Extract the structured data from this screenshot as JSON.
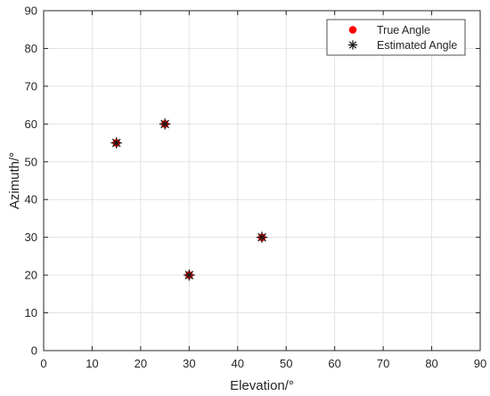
{
  "chart_data": {
    "type": "scatter",
    "xlabel": "Elevation/°",
    "ylabel": "Azimuth/°",
    "xlim": [
      0,
      90
    ],
    "ylim": [
      0,
      90
    ],
    "xticks": [
      0,
      10,
      20,
      30,
      40,
      50,
      60,
      70,
      80,
      90
    ],
    "yticks": [
      0,
      10,
      20,
      30,
      40,
      50,
      60,
      70,
      80,
      90
    ],
    "grid": true,
    "legend_position": "top-right",
    "series": [
      {
        "name": "True Angle",
        "marker": "filled-circle",
        "color": "#ff0000",
        "x": [
          15,
          25,
          30,
          45
        ],
        "y": [
          55,
          60,
          20,
          30
        ]
      },
      {
        "name": "Estimated Angle",
        "marker": "asterisk",
        "color": "#1a1a1a",
        "x": [
          15,
          25,
          30,
          45
        ],
        "y": [
          55,
          60,
          20,
          30
        ]
      }
    ]
  }
}
